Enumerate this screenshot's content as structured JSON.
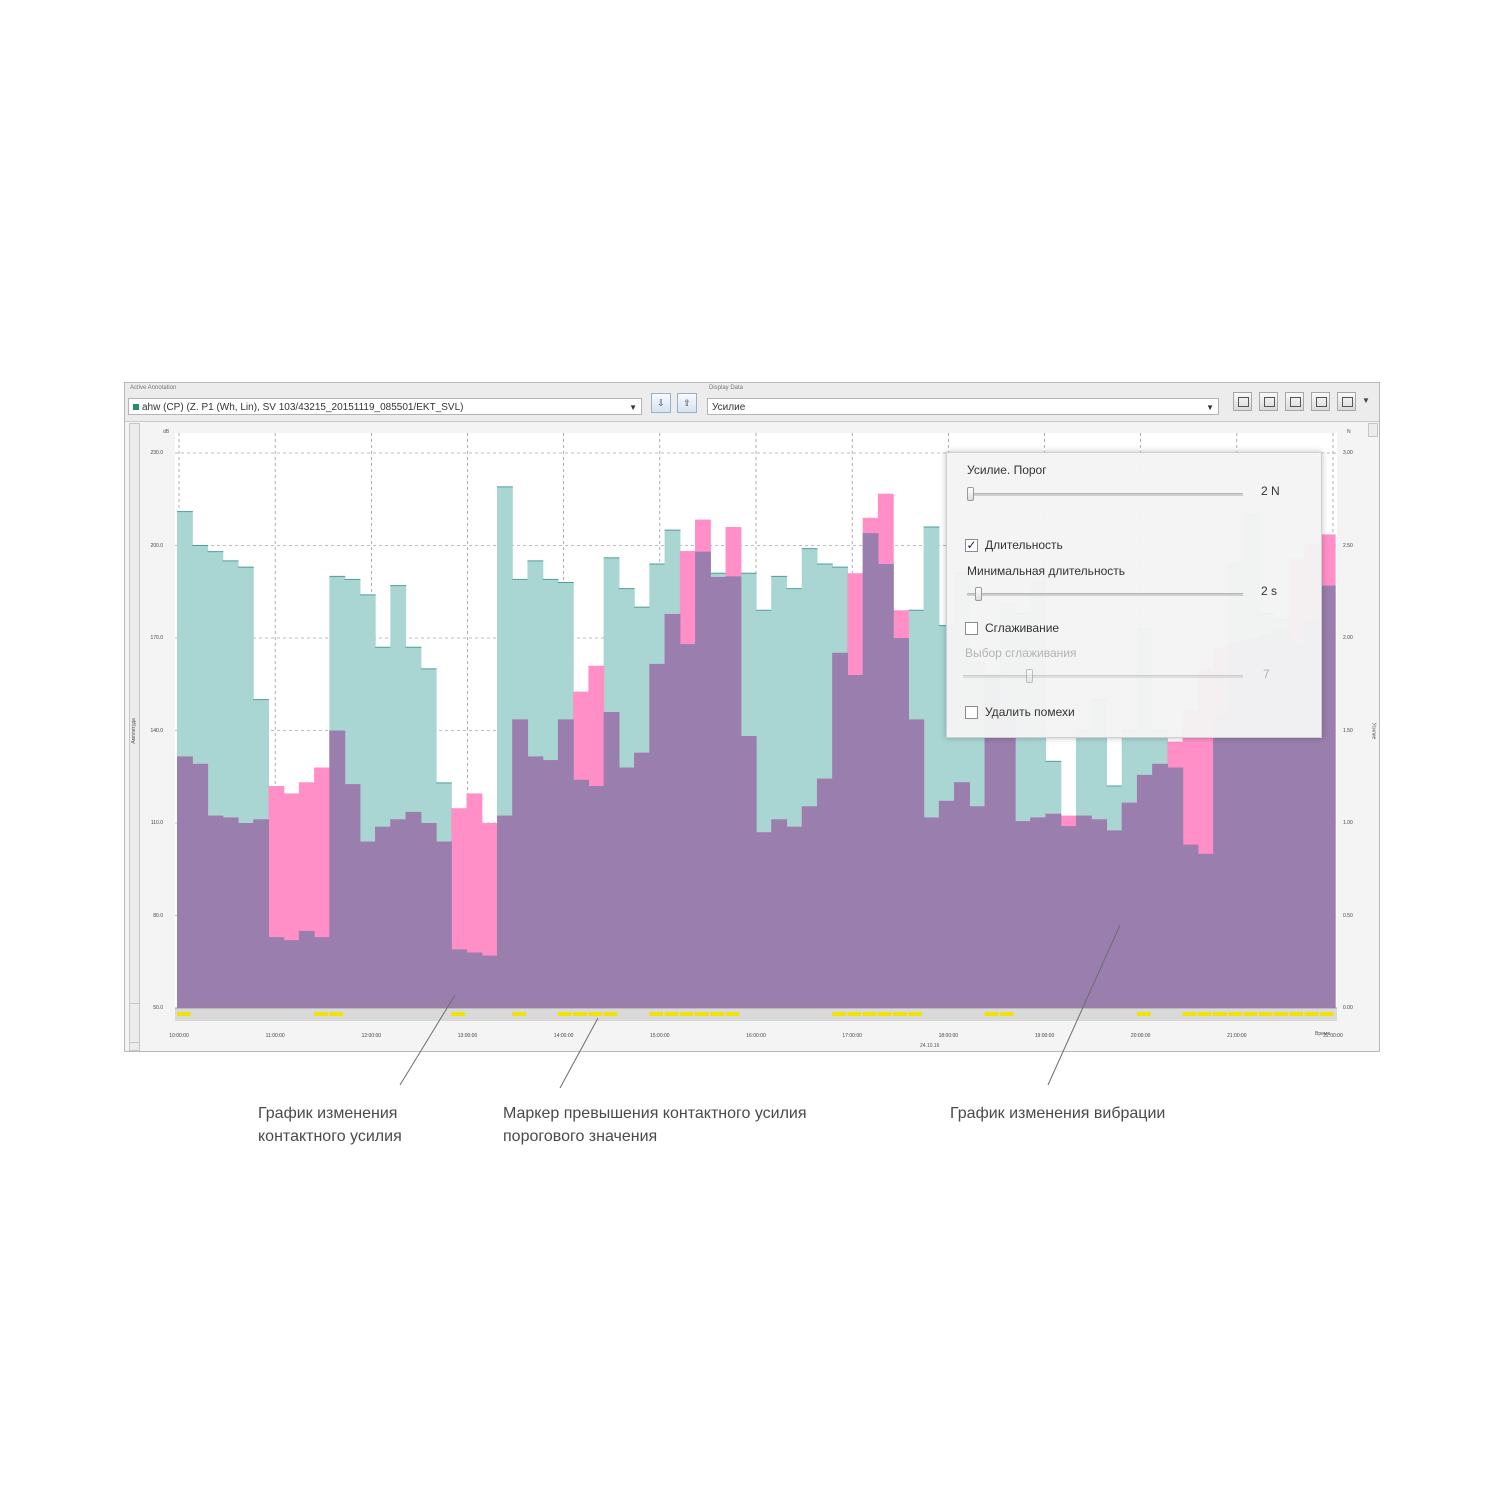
{
  "toolbar": {
    "left_label": "Active Annotation",
    "source_value": "ahw (CP) (Z. P1 (Wh, Lin), SV 103/43215_20151119_085501/EKT_SVL)",
    "right_label": "Display Data",
    "measure_value": "Усилие"
  },
  "axes": {
    "y_left_unit": "dB",
    "y_right_unit": "N",
    "y_left_title": "Амплитуда",
    "y_right_title": "Усилие",
    "x_title": "Время",
    "x_sublabel": "24.10.16"
  },
  "panel": {
    "threshold_label": "Усилие. Порог",
    "threshold_value": "2 N",
    "threshold_level": 0.0,
    "duration_label": "Длительность",
    "duration_checked": true,
    "min_duration_label": "Минимальная длительность",
    "min_duration_value": "2 s",
    "min_duration_level": 0.03,
    "smoothing_label": "Сглаживание",
    "smoothing_checked": false,
    "smoothing_choice_label": "Выбор сглаживания",
    "smoothing_choice_value": "7",
    "smoothing_choice_level": 0.23,
    "remove_label": "Удалить помехи",
    "remove_checked": false
  },
  "captions": {
    "force": [
      "График изменения",
      "контактного усилия"
    ],
    "marker": [
      "Маркер превышения контактного усилия",
      "порогового значения"
    ],
    "vibration": "График изменения вибрации"
  },
  "colors": {
    "vibration": "#a9d6d3",
    "vibration_line": "#4f9e99",
    "force": "#ff8fc6",
    "overlap": "#9a7eae",
    "marker": "#f1e300",
    "header_bar": "#a9c8f1"
  },
  "chart_data": {
    "type": "area",
    "y_left_ticks": [
      "50.0",
      "80.0",
      "110.0",
      "140.0",
      "170.0",
      "200.0",
      "230.0"
    ],
    "y_right_ticks": [
      "0.00",
      "0.50",
      "1.00",
      "1.50",
      "2.00",
      "2.50",
      "3.00"
    ],
    "x_ticks": [
      "10:00:00",
      "11:00:00",
      "12:00:00",
      "13:00:00",
      "14:00:00",
      "15:00:00",
      "16:00:00",
      "17:00:00",
      "18:00:00",
      "19:00:00",
      "20:00:00",
      "21:00:00",
      "22:00:00"
    ],
    "ylim_left": [
      50,
      230
    ],
    "ylim_right": [
      0,
      3
    ],
    "series": [
      {
        "name": "График изменения вибрации",
        "values": [
          211,
          200,
          198,
          195,
          193,
          150,
          73,
          72,
          75,
          73,
          190,
          189,
          184,
          167,
          187,
          167,
          160,
          123,
          69,
          68,
          67,
          219,
          189,
          195,
          189,
          188,
          124,
          122,
          196,
          186,
          180,
          194,
          205,
          168,
          198,
          191,
          190,
          191,
          179,
          190,
          186,
          199,
          194,
          193,
          158,
          204,
          194,
          170,
          179,
          206,
          174,
          191,
          162,
          158,
          181,
          178,
          188,
          130,
          109,
          140,
          150,
          122,
          140,
          173,
          140,
          128,
          103,
          100,
          145,
          194,
          210,
          178,
          176,
          168,
          176,
          187
        ]
      },
      {
        "name": "График изменения контактного усилия",
        "values": [
          1.36,
          1.32,
          1.04,
          1.03,
          1.0,
          1.02,
          1.2,
          1.16,
          1.22,
          1.3,
          1.5,
          1.21,
          0.9,
          0.98,
          1.02,
          1.06,
          1.0,
          0.9,
          1.08,
          1.16,
          1.0,
          1.04,
          1.56,
          1.36,
          1.34,
          1.56,
          1.71,
          1.85,
          1.6,
          1.3,
          1.38,
          1.86,
          2.13,
          2.47,
          2.64,
          2.33,
          2.6,
          1.47,
          0.95,
          1.02,
          0.98,
          1.09,
          1.24,
          1.92,
          2.35,
          2.65,
          2.78,
          2.15,
          1.56,
          1.03,
          1.12,
          1.22,
          1.09,
          1.8,
          1.59,
          1.01,
          1.03,
          1.05,
          1.04,
          1.04,
          1.02,
          0.96,
          1.11,
          1.26,
          1.32,
          1.44,
          1.61,
          1.83,
          1.95,
          1.98,
          2.0,
          2.02,
          2.04,
          2.43,
          2.51,
          2.56
        ]
      }
    ]
  }
}
